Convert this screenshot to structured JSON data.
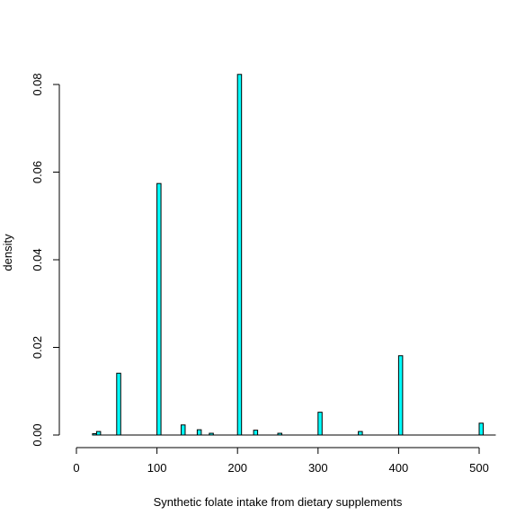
{
  "chart_data": {
    "type": "bar",
    "title": "",
    "xlabel": "Synthetic folate intake from dietary supplements",
    "ylabel": "density",
    "xlim": [
      0,
      500
    ],
    "ylim": [
      0,
      0.08
    ],
    "x_ticks": [
      0,
      100,
      200,
      300,
      400,
      500
    ],
    "x_tick_labels": [
      "0",
      "100",
      "200",
      "300",
      "400",
      "500"
    ],
    "y_ticks": [
      0.0,
      0.02,
      0.04,
      0.06,
      0.08
    ],
    "y_tick_labels": [
      "0.00",
      "0.02",
      "0.04",
      "0.06",
      "0.08"
    ],
    "bar_width": 5,
    "bar_color": "#00FFFF",
    "bar_edge_color": "#000000",
    "grid": false,
    "bins": [
      {
        "start": 20,
        "end": 25,
        "value": 0.0003
      },
      {
        "start": 25,
        "end": 30,
        "value": 0.0008
      },
      {
        "start": 50,
        "end": 55,
        "value": 0.0141
      },
      {
        "start": 100,
        "end": 105,
        "value": 0.0574
      },
      {
        "start": 130,
        "end": 135,
        "value": 0.0023
      },
      {
        "start": 150,
        "end": 155,
        "value": 0.0012
      },
      {
        "start": 165,
        "end": 170,
        "value": 0.0004
      },
      {
        "start": 200,
        "end": 205,
        "value": 0.0823
      },
      {
        "start": 220,
        "end": 225,
        "value": 0.0011
      },
      {
        "start": 250,
        "end": 255,
        "value": 0.0004
      },
      {
        "start": 300,
        "end": 305,
        "value": 0.0052
      },
      {
        "start": 350,
        "end": 355,
        "value": 0.0008
      },
      {
        "start": 400,
        "end": 405,
        "value": 0.0181
      },
      {
        "start": 500,
        "end": 505,
        "value": 0.0027
      }
    ]
  }
}
